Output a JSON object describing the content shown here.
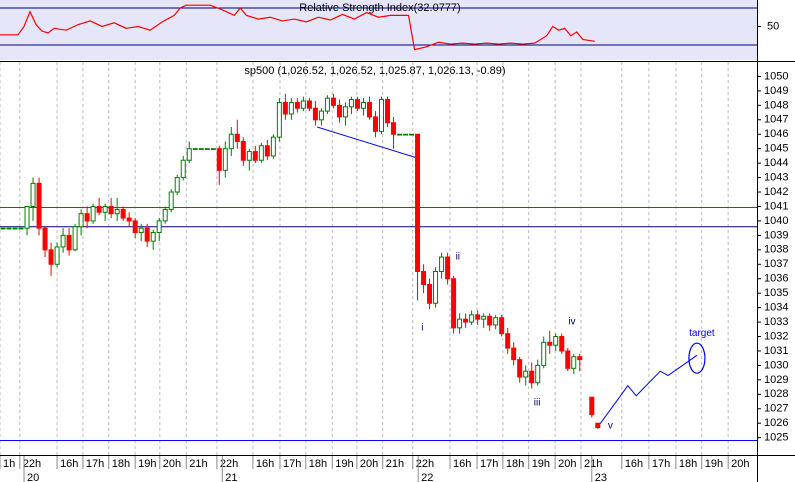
{
  "chart_data": {
    "type": "candlestick",
    "title": "sp500 (1,026.52, 1,026.52, 1,025.87, 1,026.13, -0.89)",
    "xlim": [
      0,
      126
    ],
    "ylim": [
      1023.8,
      1051
    ],
    "yticks": [
      1025,
      1026,
      1027,
      1028,
      1029,
      1030,
      1031,
      1032,
      1033,
      1034,
      1035,
      1036,
      1037,
      1038,
      1039,
      1040,
      1041,
      1042,
      1043,
      1044,
      1045,
      1046,
      1047,
      1048,
      1049,
      1050
    ],
    "xticks": [
      {
        "value": 0,
        "label": "1h"
      },
      {
        "value": 3.3,
        "label": "22h"
      },
      {
        "value": 9.5,
        "label": "16h"
      },
      {
        "value": 13.8,
        "label": "17h"
      },
      {
        "value": 18.1,
        "label": "18h"
      },
      {
        "value": 22.5,
        "label": "19h"
      },
      {
        "value": 26.6,
        "label": "20h"
      },
      {
        "value": 31,
        "label": "21h"
      },
      {
        "value": 36.1,
        "label": "22h"
      },
      {
        "value": 42.1,
        "label": "16h"
      },
      {
        "value": 46.6,
        "label": "17h"
      },
      {
        "value": 50.9,
        "label": "18h"
      },
      {
        "value": 55.3,
        "label": "19h"
      },
      {
        "value": 59.4,
        "label": "20h"
      },
      {
        "value": 63.7,
        "label": "21h"
      },
      {
        "value": 68.7,
        "label": "22h"
      },
      {
        "value": 74.9,
        "label": "16h"
      },
      {
        "value": 79.4,
        "label": "17h"
      },
      {
        "value": 83.7,
        "label": "18h"
      },
      {
        "value": 88,
        "label": "19h"
      },
      {
        "value": 92.4,
        "label": "20h"
      },
      {
        "value": 96.7,
        "label": "21h"
      },
      {
        "value": 103.5,
        "label": "16h"
      },
      {
        "value": 108,
        "label": "17h"
      },
      {
        "value": 112.5,
        "label": "18h"
      },
      {
        "value": 116.8,
        "label": "19h"
      },
      {
        "value": 121.2,
        "label": "20h"
      }
    ],
    "day_ticks": [
      {
        "value": 4,
        "label": "20"
      },
      {
        "value": 37,
        "label": "21"
      },
      {
        "value": 69.6,
        "label": "22"
      },
      {
        "value": 98.5,
        "label": "23"
      }
    ],
    "series": [
      {
        "up_color": "#008000",
        "down_color": "#ff0000",
        "x": [
          0,
          1,
          2,
          3,
          4,
          5,
          6,
          7,
          8,
          9,
          10,
          11,
          12,
          13,
          14,
          15,
          16,
          17,
          18,
          19,
          20,
          21,
          22,
          23,
          24,
          25,
          26,
          27,
          28,
          29,
          30,
          31,
          32,
          33,
          34,
          35,
          36,
          37,
          38,
          39,
          40,
          41,
          42,
          43,
          44,
          45,
          46,
          47,
          48,
          49,
          50,
          51,
          52,
          53,
          54,
          55,
          56,
          57,
          58,
          59,
          60,
          61,
          62,
          63,
          64,
          65,
          66,
          67,
          68,
          69,
          70,
          71,
          72,
          73,
          74,
          75,
          76,
          77,
          78,
          79,
          80,
          81,
          82,
          83,
          84,
          85,
          86,
          87,
          88,
          89,
          90,
          91,
          92,
          93,
          94,
          95,
          96,
          98,
          99
        ],
        "open": [
          1039.5,
          1039.5,
          1039.5,
          1039.5,
          1039.5,
          1041,
          1042.6,
          1039.5,
          1038,
          1037,
          1038.2,
          1039,
          1038,
          1039.6,
          1040.5,
          1040,
          1041,
          1040.6,
          1041,
          1040.5,
          1040.8,
          1040.2,
          1040,
          1039.2,
          1039.5,
          1038.6,
          1039.2,
          1040,
          1040.8,
          1042,
          1043,
          1044.2,
          1045,
          1045,
          1045,
          1045,
          1045,
          1043.5,
          1045,
          1046,
          1045.5,
          1044.2,
          1044.8,
          1044.2,
          1045.2,
          1044.5,
          1045.8,
          1048.2,
          1047.4,
          1048.2,
          1047.8,
          1048.3,
          1047.8,
          1047,
          1047.6,
          1048.5,
          1048,
          1047.2,
          1047.9,
          1048.4,
          1047.8,
          1048.2,
          1047.2,
          1046.2,
          1048.4,
          1046.8,
          1046,
          1046,
          1046,
          1046,
          1036.5,
          1035.6,
          1034.3,
          1036.5,
          1037.5,
          1036,
          1032.6,
          1033.2,
          1033,
          1033.5,
          1033.2,
          1033.4,
          1032.8,
          1033.3,
          1032.2,
          1031.2,
          1030.4,
          1029.2,
          1029.6,
          1028.8,
          1030,
          1031.6,
          1031.4,
          1032,
          1031,
          1029.8,
          1030.6,
          1027.8,
          1026
        ],
        "high": [
          1039.5,
          1039.5,
          1039.5,
          1039.5,
          1041,
          1043,
          1043,
          1039.6,
          1038.5,
          1038.5,
          1039.5,
          1039.5,
          1039.8,
          1040.8,
          1041,
          1041.2,
          1041.6,
          1041.2,
          1041.6,
          1041.6,
          1041,
          1040.6,
          1040.2,
          1039.8,
          1039.8,
          1039.4,
          1040.2,
          1041,
          1042.2,
          1043.2,
          1044.5,
          1045.5,
          1045,
          1045,
          1045,
          1045,
          1045.2,
          1045.5,
          1046.5,
          1047,
          1045.8,
          1045,
          1045.2,
          1045.4,
          1045.6,
          1046,
          1048.5,
          1048.8,
          1048.5,
          1048.5,
          1048.6,
          1048.5,
          1048.3,
          1047.8,
          1048.7,
          1048.8,
          1048.4,
          1048.2,
          1048.6,
          1048.6,
          1048.5,
          1048.6,
          1047.6,
          1048.6,
          1048.6,
          1047.2,
          1046,
          1046,
          1046,
          1046,
          1037,
          1036,
          1036.8,
          1037.8,
          1037.8,
          1036.2,
          1033.6,
          1033.6,
          1033.8,
          1033.8,
          1033.6,
          1033.6,
          1033.5,
          1033.5,
          1032.6,
          1031.6,
          1030.6,
          1030,
          1030.2,
          1030.4,
          1032,
          1032.4,
          1032.2,
          1032.2,
          1031.2,
          1030.8,
          1030.8,
          1027.8,
          1026
        ],
        "low": [
          1039.5,
          1039.5,
          1039.5,
          1039.5,
          1039,
          1040,
          1039,
          1037.5,
          1036.2,
          1036.8,
          1037.8,
          1037.6,
          1037.9,
          1039,
          1039.5,
          1039.8,
          1040.4,
          1040,
          1040.2,
          1040,
          1040,
          1039.6,
          1038.8,
          1038.6,
          1038.2,
          1038,
          1038.6,
          1039.8,
          1040.6,
          1041.8,
          1042.8,
          1044,
          1045,
          1045,
          1045,
          1045,
          1042.5,
          1043,
          1044.5,
          1045,
          1043.8,
          1043.5,
          1044,
          1044,
          1044.2,
          1044.3,
          1045.5,
          1047,
          1047,
          1047.5,
          1047.6,
          1047.6,
          1046.6,
          1046.6,
          1047.4,
          1047.8,
          1046.8,
          1046.6,
          1047.4,
          1047.6,
          1047.3,
          1047,
          1045.8,
          1046,
          1046.5,
          1045,
          1046,
          1046,
          1046,
          1034.5,
          1035,
          1033.9,
          1034,
          1036,
          1035.6,
          1032.2,
          1032.2,
          1032.6,
          1032.8,
          1032.8,
          1032.6,
          1032.4,
          1032.5,
          1032,
          1030.8,
          1030,
          1028.8,
          1028.6,
          1028.4,
          1028.6,
          1029.8,
          1030.8,
          1031,
          1030.8,
          1029.6,
          1029.4,
          1029.6,
          1026.4,
          1025.6
        ],
        "close": [
          1039.5,
          1039.5,
          1039.5,
          1039.5,
          1041,
          1042.6,
          1039.5,
          1038,
          1037,
          1038.2,
          1039,
          1038,
          1039.6,
          1040.5,
          1040,
          1041,
          1040.6,
          1041,
          1040.5,
          1040.8,
          1040.2,
          1040,
          1039.2,
          1039.5,
          1038.6,
          1039.2,
          1040,
          1040.8,
          1042,
          1043,
          1044.2,
          1045,
          1045,
          1045,
          1045,
          1045,
          1043.5,
          1045,
          1046,
          1045.5,
          1044.2,
          1044.8,
          1044.2,
          1045.2,
          1044.5,
          1045.8,
          1048.2,
          1047.4,
          1048.2,
          1047.8,
          1048.3,
          1047.8,
          1047,
          1047.6,
          1048.5,
          1048,
          1047.2,
          1047.9,
          1048.4,
          1047.8,
          1048.2,
          1047.2,
          1046.2,
          1048.4,
          1046.8,
          1046,
          1046,
          1046,
          1046,
          1036.5,
          1035.6,
          1034.3,
          1036.5,
          1037.5,
          1036,
          1032.6,
          1033.2,
          1033,
          1033.5,
          1033.2,
          1033.4,
          1032.8,
          1033.3,
          1032.2,
          1031.2,
          1030.4,
          1029.2,
          1029.6,
          1028.8,
          1030,
          1031.6,
          1031.4,
          1032,
          1031,
          1029.8,
          1030.6,
          1030.4,
          1026.6,
          1025.7
        ]
      }
    ],
    "hlines": [
      {
        "value": 1040.93,
        "color": "#008000"
      },
      {
        "value": 1039.6,
        "color": "#000080"
      },
      {
        "value": 1024.8,
        "color": "#0000ff"
      }
    ],
    "trendline": {
      "x": [
        52.8,
        69.1
      ],
      "values": [
        1046.5,
        1044.4
      ],
      "color": "#0000ff"
    },
    "projection": {
      "x": [
        99.9,
        104.5,
        105.9,
        109.9,
        111.2,
        116
      ],
      "values": [
        1025.97,
        1028.6,
        1027.9,
        1029.6,
        1029.3,
        1030.7
      ],
      "color": "#0000ff"
    },
    "annotations": [
      {
        "text": "i",
        "x": 70.3,
        "value": 1032.6
      },
      {
        "text": "ii",
        "x": 76.2,
        "value": 1037.5
      },
      {
        "text": "iii",
        "x": 89.4,
        "value": 1027.4
      },
      {
        "text": "iv",
        "x": 95.2,
        "value": 1033
      },
      {
        "text": "v",
        "x": 101.6,
        "value": 1025.8
      }
    ],
    "target": {
      "text": "target",
      "x": 116,
      "value": 1030.5,
      "color": "#0000ff"
    },
    "rsi": {
      "title": "Relative Strength Index(32.0777)",
      "ylim": [
        13.8,
        78.6
      ],
      "yticks": [
        50
      ],
      "levels": [
        30,
        70
      ],
      "color": "#ff0000",
      "background": "#e6e6fa",
      "x": [
        0,
        3,
        4,
        5,
        6,
        7,
        8,
        9,
        11,
        13,
        15,
        17,
        19,
        21,
        23,
        25,
        27,
        29,
        30,
        31,
        35,
        37,
        39,
        40,
        41,
        43,
        45,
        47,
        49,
        51,
        53,
        55,
        57,
        59,
        61,
        63,
        65,
        68,
        69,
        71,
        73,
        75,
        77,
        79,
        81,
        83,
        85,
        87,
        89,
        91,
        92,
        93,
        94,
        95,
        96,
        97,
        99
      ],
      "values": [
        41,
        41,
        50,
        66,
        52,
        45,
        43,
        48,
        46,
        52,
        56,
        50,
        54,
        48,
        50,
        46,
        55,
        62,
        70,
        73,
        73,
        68,
        62,
        70,
        62,
        58,
        60,
        56,
        58,
        55,
        60,
        57,
        63,
        58,
        65,
        60,
        62,
        62,
        25,
        28,
        33,
        31,
        32,
        31,
        32,
        31,
        32,
        31,
        32,
        40,
        50,
        46,
        48,
        40,
        44,
        36,
        34
      ]
    }
  }
}
